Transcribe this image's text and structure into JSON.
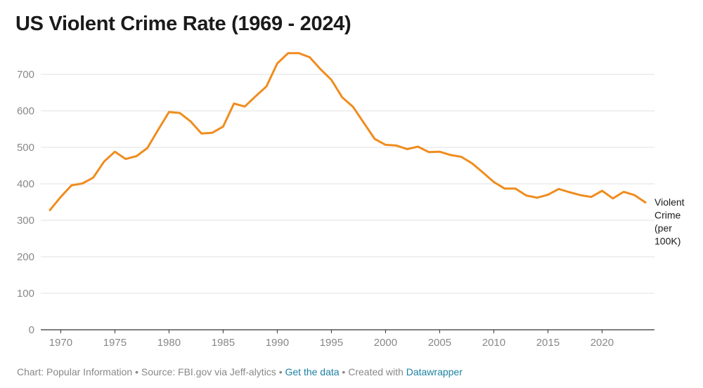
{
  "chart_data": {
    "type": "line",
    "title": "US Violent Crime Rate (1969 - 2024)",
    "xlabel": "",
    "ylabel": "",
    "xlim": [
      1969,
      2024
    ],
    "ylim": [
      0,
      750
    ],
    "y_ticks": [
      0,
      100,
      200,
      300,
      400,
      500,
      600,
      700
    ],
    "x_ticks": [
      1970,
      1975,
      1980,
      1985,
      1990,
      1995,
      2000,
      2005,
      2010,
      2015,
      2020
    ],
    "grid": true,
    "series": [
      {
        "name": "Violent Crime (per 100K)",
        "label_lines": [
          "Violent",
          "Crime",
          "(per",
          "100K)"
        ],
        "color": "#f08c1e",
        "x": [
          1969,
          1970,
          1971,
          1972,
          1973,
          1974,
          1975,
          1976,
          1977,
          1978,
          1979,
          1980,
          1981,
          1982,
          1983,
          1984,
          1985,
          1986,
          1987,
          1988,
          1989,
          1990,
          1991,
          1992,
          1993,
          1994,
          1995,
          1996,
          1997,
          1998,
          1999,
          2000,
          2001,
          2002,
          2003,
          2004,
          2005,
          2006,
          2007,
          2008,
          2009,
          2010,
          2011,
          2012,
          2013,
          2014,
          2015,
          2016,
          2017,
          2018,
          2019,
          2020,
          2021,
          2022,
          2023,
          2024
        ],
        "values": [
          328,
          364,
          396,
          401,
          417,
          461,
          488,
          468,
          476,
          498,
          548,
          597,
          594,
          571,
          538,
          540,
          557,
          620,
          612,
          640,
          667,
          730,
          758,
          758,
          747,
          714,
          685,
          637,
          611,
          567,
          523,
          507,
          505,
          495,
          502,
          487,
          488,
          479,
          474,
          456,
          431,
          405,
          387,
          387,
          368,
          362,
          370,
          386,
          377,
          369,
          364,
          381,
          360,
          378,
          369,
          349
        ]
      }
    ]
  },
  "footer": {
    "prefix": "Chart: Popular Information • Source: FBI.gov via Jeff-alytics • ",
    "link1": "Get the data",
    "middle": " • Created with ",
    "link2": "Datawrapper"
  }
}
